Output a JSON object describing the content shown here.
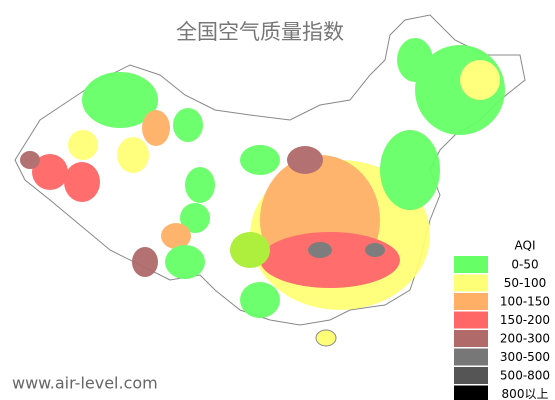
{
  "title": "全国空气质量指数",
  "watermark": "www.air-level.com",
  "legend": {
    "title": "AQI",
    "items": [
      {
        "label": "0-50",
        "color": "#66ff66"
      },
      {
        "label": "50-100",
        "color": "#ffff77"
      },
      {
        "label": "100-150",
        "color": "#ffb066"
      },
      {
        "label": "150-200",
        "color": "#ff6666"
      },
      {
        "label": "200-300",
        "color": "#b06a6a"
      },
      {
        "label": "300-500",
        "color": "#777777"
      },
      {
        "label": "500-800",
        "color": "#555555"
      },
      {
        "label": "800以上",
        "color": "#000000"
      }
    ]
  }
}
